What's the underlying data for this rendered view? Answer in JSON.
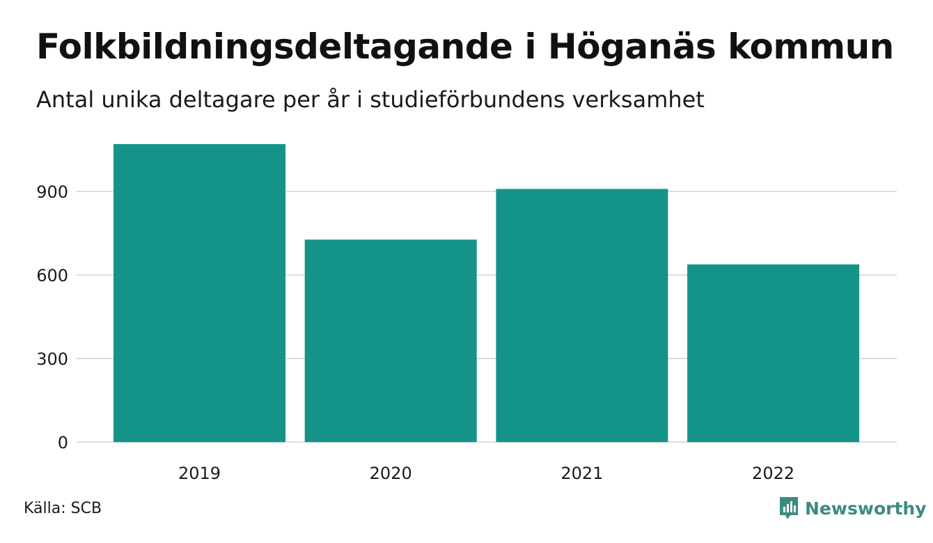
{
  "header": {
    "title": "Folkbildningsdeltagande i Höganäs kommun",
    "subtitle": "Antal unika deltagare per år i studieförbundens verksamhet"
  },
  "footer": {
    "source": "Källa: SCB",
    "brand": "Newsworthy",
    "brand_icon": "newsworthy-logo-icon"
  },
  "colors": {
    "bar": "#149488",
    "grid": "#dddddd",
    "brand": "#3a8c80"
  },
  "chart_data": {
    "type": "bar",
    "title": "Folkbildningsdeltagande i Höganäs kommun",
    "subtitle": "Antal unika deltagare per år i studieförbundens verksamhet",
    "xlabel": "",
    "ylabel": "",
    "categories": [
      "2019",
      "2020",
      "2021",
      "2022"
    ],
    "values": [
      1070,
      727,
      909,
      638
    ],
    "ylim": [
      0,
      1100
    ],
    "yticks": [
      0,
      300,
      600,
      900
    ],
    "ytick_labels": [
      "0",
      "300",
      "600",
      "900"
    ],
    "grid": true,
    "legend": "none"
  }
}
